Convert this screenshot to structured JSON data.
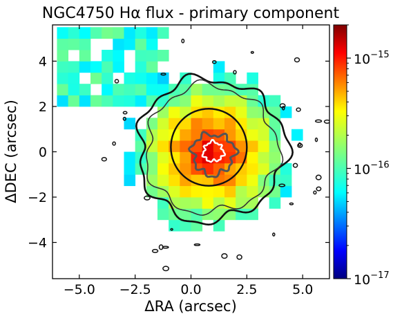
{
  "chart_data": {
    "type": "heatmap",
    "title": "NGC4750 Hα flux - primary component",
    "xlabel": "ΔRA (arcsec)",
    "ylabel": "ΔDEC (arcsec)",
    "xlim": [
      -6.2,
      6.2
    ],
    "ylim": [
      -5.6,
      5.6
    ],
    "x_ticks": [
      -5.0,
      -2.5,
      0.0,
      2.5,
      5.0
    ],
    "x_tick_labels": [
      "−5.0",
      "−2.5",
      "0.0",
      "2.5",
      "5.0"
    ],
    "y_ticks": [
      -4,
      -2,
      0,
      2,
      4
    ],
    "y_tick_labels": [
      "−4",
      "−2",
      "0",
      "2",
      "4"
    ],
    "grid": false,
    "pixel_size_arcsec": 0.5,
    "flux_peak_center": [
      0.9,
      0.0
    ],
    "flux_scale": "log",
    "colormap": "jet",
    "colorbar": {
      "range": [
        1e-17,
        2e-15
      ],
      "ticks": [
        {
          "value": 1e-17,
          "base": "10",
          "exp": "−17"
        },
        {
          "value": 1e-16,
          "base": "10",
          "exp": "−16"
        },
        {
          "value": 1e-15,
          "base": "10",
          "exp": "−15"
        }
      ]
    },
    "contours": {
      "outer_contour_radius_arcsec": 3.3,
      "inner_circle": {
        "center": [
          0.8,
          0.2
        ],
        "radius_arcsec": 1.7
      },
      "white_contour_center": [
        1.0,
        0.0
      ],
      "colors": {
        "outer": "#111111",
        "inner": "#555555",
        "core": "#ffffff"
      }
    }
  }
}
